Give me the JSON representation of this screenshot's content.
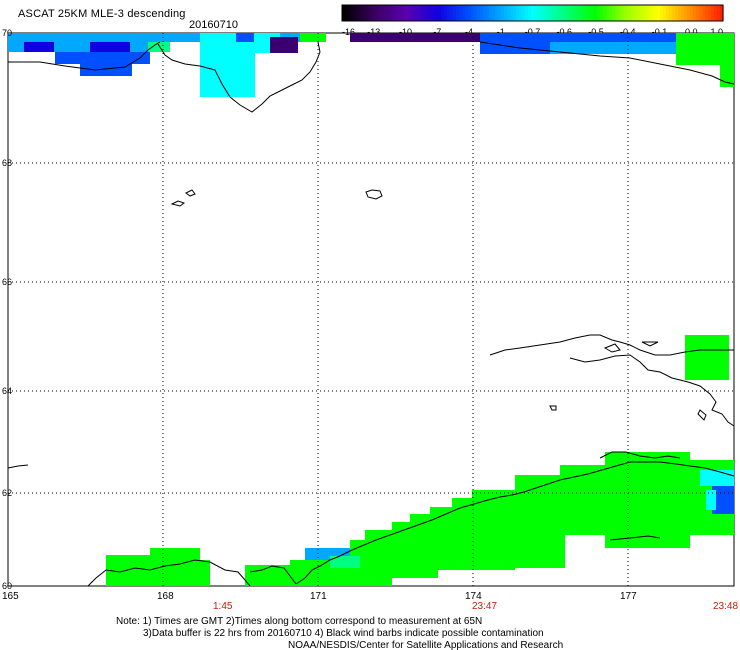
{
  "header": {
    "title": "ASCAT 25KM MLE-3 descending",
    "date": "20160710"
  },
  "colorbar": {
    "labels": [
      "-16",
      "-13",
      "-10",
      "-7",
      "-4",
      "-1",
      "-0.7",
      "-0.6",
      "-0.5",
      "-0.4",
      "-0.1",
      "0.0",
      "1.0"
    ],
    "colors": [
      "#000000",
      "#3a0060",
      "#5a00b0",
      "#1000e0",
      "#0050ff",
      "#00a8ff",
      "#00ffff",
      "#00ff80",
      "#00ff00",
      "#a0ff00",
      "#ffff00",
      "#ff9000",
      "#ff2000"
    ]
  },
  "axes": {
    "lat_labels": [
      "70",
      "68",
      "66",
      "64",
      "62",
      "60"
    ],
    "lon_labels": [
      "165",
      "168",
      "171",
      "174",
      "177"
    ]
  },
  "times": [
    "1:45",
    "23:47",
    "23:48"
  ],
  "notes": {
    "line1": "Note: 1) Times are GMT 2)Times along bottom correspond to measurement at 65N",
    "line2": "3)Data buffer is 22 hrs from 20160710 4) Black wind barbs indicate possible contamination",
    "line3": "NOAA/NESDIS/Center for Satellite Applications and Research"
  },
  "palette": {
    "green": "#00ff00",
    "cyan": "#00ffff",
    "blue": "#0050ff",
    "purple": "#3a0070"
  }
}
